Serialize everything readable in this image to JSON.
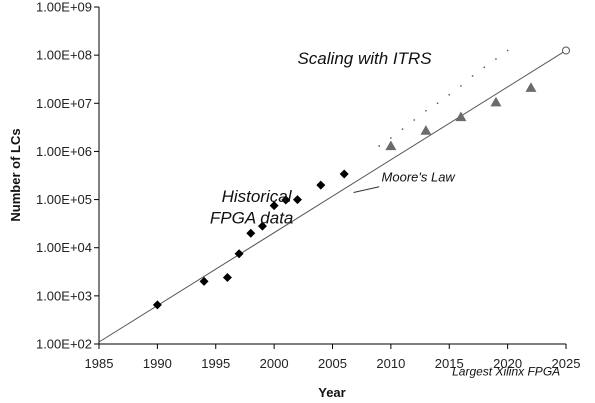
{
  "chart_data": {
    "type": "scatter",
    "title": "",
    "xlabel": "Year",
    "ylabel": "Number of LCs",
    "xlim": [
      1985,
      2025
    ],
    "ylim": [
      100,
      1000000000
    ],
    "yscale": "log",
    "grid": false,
    "x_ticks": [
      1985,
      1990,
      1995,
      2000,
      2005,
      2010,
      2015,
      2020,
      2025
    ],
    "x_tick_labels": [
      "1985",
      "1990",
      "1995",
      "2000",
      "2005",
      "2010",
      "2015",
      "2020",
      "2025"
    ],
    "y_ticks": [
      100,
      1000,
      10000,
      100000,
      1000000,
      10000000,
      100000000,
      1000000000
    ],
    "y_tick_labels": [
      "1.00E+02",
      "1.00E+03",
      "1.00E+04",
      "1.00E+05",
      "1.00E+06",
      "1.00E+07",
      "1.00E+08",
      "1.00E+09"
    ],
    "series": [
      {
        "marker": "diamond",
        "color": "#000000",
        "points": [
          [
            1990,
            650
          ],
          [
            1994,
            2000
          ],
          [
            1996,
            2400
          ],
          [
            1997,
            7500
          ],
          [
            1998,
            20000
          ],
          [
            1999,
            28000
          ],
          [
            2000,
            75000
          ],
          [
            2001,
            98000
          ],
          [
            2002,
            100000
          ],
          [
            2004,
            200000
          ],
          [
            2006,
            340000
          ]
        ]
      },
      {
        "marker": "triangle",
        "color": "#6b6b6b",
        "points": [
          [
            2010,
            1300000
          ],
          [
            2013,
            2700000
          ],
          [
            2016,
            5200000
          ],
          [
            2019,
            10500000
          ],
          [
            2022,
            21000000
          ]
        ]
      },
      {
        "marker": "dot",
        "color": "#666666",
        "points": [
          [
            2009,
            1300000
          ],
          [
            2010,
            1900000
          ],
          [
            2011,
            2900000
          ],
          [
            2012,
            4500000
          ],
          [
            2013,
            7000000
          ],
          [
            2014,
            10000000
          ],
          [
            2015,
            15000000
          ],
          [
            2016,
            23000000
          ],
          [
            2017,
            37000000
          ],
          [
            2018,
            56000000
          ],
          [
            2019,
            83000000
          ],
          [
            2020,
            125000000
          ]
        ]
      },
      {
        "marker": "open-circle",
        "color": "#555555",
        "points": [
          [
            2025,
            125000000
          ]
        ]
      }
    ],
    "trend_line": {
      "from": [
        1985,
        110
      ],
      "to": [
        2025,
        125000000
      ],
      "color": "#555555"
    },
    "annotations": [
      {
        "text": "Scaling with ITRS",
        "x": 2002,
        "y": 65000000
      },
      {
        "text": "Moore's Law",
        "x": 2009.2,
        "y": 240000
      },
      {
        "text": "Historical",
        "x": 1995.5,
        "y": 90000
      },
      {
        "text": "FPGA data",
        "x": 1994.5,
        "y": 32000
      },
      {
        "text": "Largest Xilinx FPGA",
        "x": 2024.5,
        "y": 22
      }
    ]
  }
}
